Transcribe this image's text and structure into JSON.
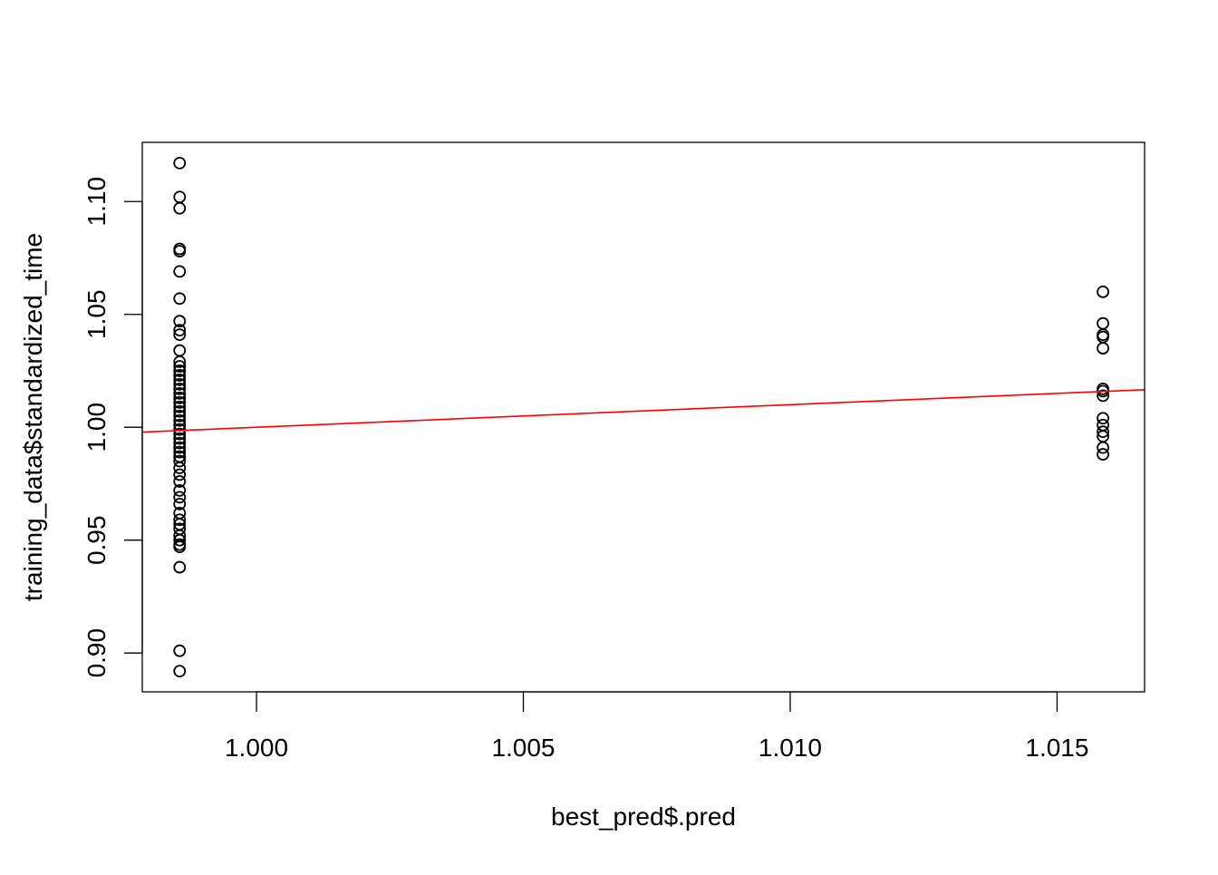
{
  "chart_data": {
    "type": "scatter",
    "title": "",
    "xlabel": "best_pred$.pred",
    "ylabel": "training_data$standardized_time",
    "xlim": [
      0.99786,
      1.01664
    ],
    "ylim": [
      0.8828,
      1.1262
    ],
    "x_ticks": [
      1.0,
      1.005,
      1.01,
      1.015
    ],
    "x_tick_labels": [
      "1.000",
      "1.005",
      "1.010",
      "1.015"
    ],
    "y_ticks": [
      0.9,
      0.95,
      1.0,
      1.05,
      1.1
    ],
    "y_tick_labels": [
      "0.90",
      "0.95",
      "1.00",
      "1.05",
      "1.10"
    ],
    "grid": false,
    "legend": "none",
    "point_style": "open-circle",
    "point_color": "#000000",
    "series": [
      {
        "x_value": 0.99856,
        "values": [
          1.117,
          1.102,
          1.097,
          1.079,
          1.078,
          1.069,
          1.057,
          1.047,
          1.043,
          1.041,
          1.034,
          1.029,
          1.027,
          1.025,
          1.023,
          1.021,
          1.019,
          1.017,
          1.015,
          1.013,
          1.011,
          1.009,
          1.007,
          1.005,
          1.003,
          1.001,
          0.999,
          0.997,
          0.995,
          0.993,
          0.991,
          0.989,
          0.987,
          0.985,
          0.982,
          0.979,
          0.976,
          0.972,
          0.969,
          0.966,
          0.962,
          0.959,
          0.957,
          0.955,
          0.952,
          0.95,
          0.948,
          0.947,
          0.938,
          0.901,
          0.892
        ]
      },
      {
        "x_value": 1.01586,
        "values": [
          1.06,
          1.046,
          1.041,
          1.04,
          1.035,
          1.017,
          1.016,
          1.014,
          1.004,
          1.001,
          0.998,
          0.996,
          0.991,
          0.988
        ]
      }
    ],
    "fit_line": {
      "color": "#ff0000",
      "intercept": 0.0,
      "slope": 1.0
    }
  }
}
